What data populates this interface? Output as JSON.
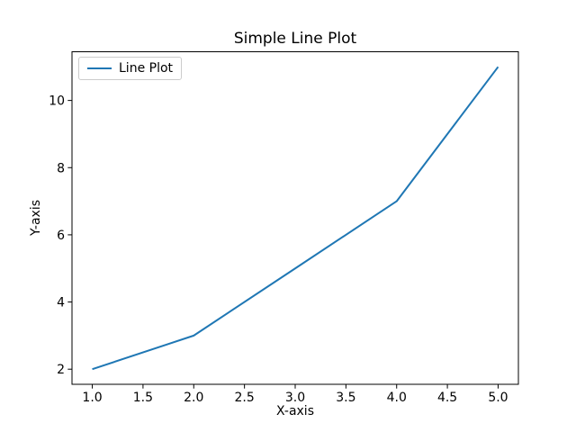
{
  "figure": {
    "background": "#ffffff"
  },
  "chart_data": {
    "type": "line",
    "title": "Simple Line Plot",
    "xlabel": "X-axis",
    "ylabel": "Y-axis",
    "x": [
      1,
      2,
      3,
      4,
      5
    ],
    "series": [
      {
        "name": "Line Plot",
        "color": "#1f77b4",
        "values": [
          2,
          3,
          5,
          7,
          11
        ]
      }
    ],
    "xlim": [
      0.8,
      5.2
    ],
    "ylim": [
      1.55,
      11.45
    ],
    "xticks": {
      "values": [
        1.0,
        1.5,
        2.0,
        2.5,
        3.0,
        3.5,
        4.0,
        4.5,
        5.0
      ],
      "labels": [
        "1.0",
        "1.5",
        "2.0",
        "2.5",
        "3.0",
        "3.5",
        "4.0",
        "4.5",
        "5.0"
      ]
    },
    "yticks": {
      "values": [
        2,
        4,
        6,
        8,
        10
      ],
      "labels": [
        "2",
        "4",
        "6",
        "8",
        "10"
      ]
    },
    "legend": {
      "position": "upper-left",
      "entries": [
        {
          "label": "Line Plot",
          "color": "#1f77b4"
        }
      ]
    },
    "grid": false,
    "spine_color": "#000000",
    "tick_color": "#000000",
    "text_color": "#000000"
  }
}
